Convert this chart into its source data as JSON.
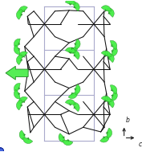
{
  "bg_color": "#ffffff",
  "zn_color": "#4466dd",
  "o_color": "#ee2222",
  "i_color": "#22cc22",
  "bond_color": "#111111",
  "cell_color": "#aaaacc",
  "lone_pair_color": "#44ee44",
  "figsize": [
    1.77,
    1.89
  ],
  "dpi": 100,
  "zn_r": 0.022,
  "o_r": 0.012,
  "i_r": 0.02,
  "lp_r": 0.038,
  "lp_dist": 0.042
}
